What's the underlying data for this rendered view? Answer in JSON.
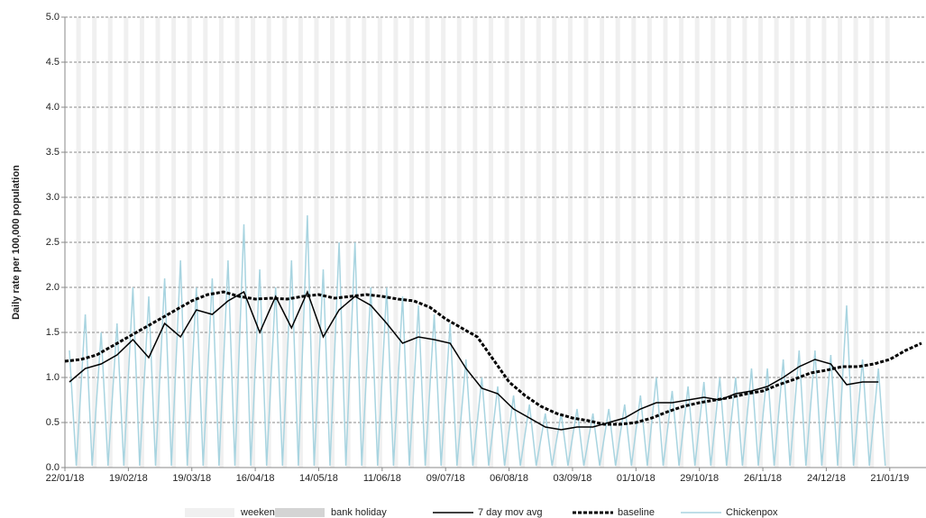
{
  "chart_data": {
    "type": "line",
    "y_label": "Daily rate per 100,000 population",
    "xlim": [
      "2018-01-22",
      "2019-02-06"
    ],
    "ylim": [
      0,
      5
    ],
    "yticks": [
      {
        "value": 0,
        "label": "0.0"
      },
      {
        "value": 0.5,
        "label": "0.5"
      },
      {
        "value": 1,
        "label": "1.0"
      },
      {
        "value": 1.5,
        "label": "1.5"
      },
      {
        "value": 2,
        "label": "2.0"
      },
      {
        "value": 2.5,
        "label": "2.5"
      },
      {
        "value": 3,
        "label": "3.0"
      },
      {
        "value": 3.5,
        "label": "3.5"
      },
      {
        "value": 4,
        "label": "4.0"
      },
      {
        "value": 4.5,
        "label": "4.5"
      },
      {
        "value": 5,
        "label": "5.0"
      }
    ],
    "xticks": [
      {
        "value": "2018-01-22",
        "label": "22/01/18"
      },
      {
        "value": "2018-02-19",
        "label": "19/02/18"
      },
      {
        "value": "2018-03-19",
        "label": "19/03/18"
      },
      {
        "value": "2018-04-16",
        "label": "16/04/18"
      },
      {
        "value": "2018-05-14",
        "label": "14/05/18"
      },
      {
        "value": "2018-06-11",
        "label": "11/06/18"
      },
      {
        "value": "2018-07-09",
        "label": "09/07/18"
      },
      {
        "value": "2018-08-06",
        "label": "06/08/18"
      },
      {
        "value": "2018-09-03",
        "label": "03/09/18"
      },
      {
        "value": "2018-10-01",
        "label": "01/10/18"
      },
      {
        "value": "2018-10-29",
        "label": "29/10/18"
      },
      {
        "value": "2018-11-26",
        "label": "26/11/18"
      },
      {
        "value": "2018-12-24",
        "label": "24/12/18"
      },
      {
        "value": "2019-01-21",
        "label": "21/01/19"
      }
    ],
    "grid": true,
    "legend": "bottom",
    "series": [
      {
        "name": "weekend",
        "style": "bar",
        "color": "#f0f0f0",
        "x": [
          "2018-01-27",
          "2018-02-03",
          "2018-02-10",
          "2018-02-17",
          "2018-02-24",
          "2018-03-03",
          "2018-03-10",
          "2018-03-17",
          "2018-03-24",
          "2018-03-31",
          "2018-04-07",
          "2018-04-14",
          "2018-04-21",
          "2018-04-28",
          "2018-05-05",
          "2018-05-12",
          "2018-05-19",
          "2018-05-26",
          "2018-06-02",
          "2018-06-09",
          "2018-06-16",
          "2018-06-23",
          "2018-06-30",
          "2018-07-07",
          "2018-07-14",
          "2018-07-21",
          "2018-07-28",
          "2018-08-04",
          "2018-08-11",
          "2018-08-18",
          "2018-08-25",
          "2018-09-01",
          "2018-09-08",
          "2018-09-15",
          "2018-09-22",
          "2018-09-29",
          "2018-10-06",
          "2018-10-13",
          "2018-10-20",
          "2018-10-27",
          "2018-11-03",
          "2018-11-10",
          "2018-11-17",
          "2018-11-24",
          "2018-12-01",
          "2018-12-08",
          "2018-12-15",
          "2018-12-22",
          "2018-12-29",
          "2019-01-05",
          "2019-01-12",
          "2019-01-19"
        ],
        "values": [
          5,
          5,
          5,
          5,
          5,
          5,
          5,
          5,
          5,
          5,
          5,
          5,
          5,
          5,
          5,
          5,
          5,
          5,
          5,
          5,
          5,
          5,
          5,
          5,
          5,
          5,
          5,
          5,
          5,
          5,
          5,
          5,
          5,
          5,
          5,
          5,
          5,
          5,
          5,
          5,
          5,
          5,
          5,
          5,
          5,
          5,
          5,
          5,
          5,
          5,
          5,
          5
        ]
      },
      {
        "name": "bank holiday",
        "style": "bar",
        "color": "#d4d4d4",
        "x": [],
        "values": []
      },
      {
        "name": "7 day mov avg",
        "style": "line",
        "color": "#000000",
        "x": [
          "2018-01-24",
          "2018-01-31",
          "2018-02-07",
          "2018-02-14",
          "2018-02-21",
          "2018-02-28",
          "2018-03-07",
          "2018-03-14",
          "2018-03-21",
          "2018-03-28",
          "2018-04-04",
          "2018-04-11",
          "2018-04-18",
          "2018-04-25",
          "2018-05-02",
          "2018-05-09",
          "2018-05-16",
          "2018-05-23",
          "2018-05-30",
          "2018-06-06",
          "2018-06-13",
          "2018-06-20",
          "2018-06-27",
          "2018-07-04",
          "2018-07-11",
          "2018-07-18",
          "2018-07-25",
          "2018-08-01",
          "2018-08-08",
          "2018-08-15",
          "2018-08-22",
          "2018-08-29",
          "2018-09-05",
          "2018-09-12",
          "2018-09-19",
          "2018-09-26",
          "2018-10-03",
          "2018-10-10",
          "2018-10-17",
          "2018-10-24",
          "2018-10-31",
          "2018-11-07",
          "2018-11-14",
          "2018-11-21",
          "2018-11-28",
          "2018-12-05",
          "2018-12-12",
          "2018-12-19",
          "2018-12-26",
          "2019-01-02",
          "2019-01-09",
          "2019-01-16"
        ],
        "values": [
          0.95,
          1.1,
          1.15,
          1.25,
          1.42,
          1.22,
          1.6,
          1.45,
          1.75,
          1.7,
          1.85,
          1.95,
          1.5,
          1.9,
          1.55,
          1.95,
          1.45,
          1.75,
          1.9,
          1.8,
          1.6,
          1.38,
          1.45,
          1.42,
          1.38,
          1.1,
          0.88,
          0.82,
          0.65,
          0.55,
          0.45,
          0.42,
          0.45,
          0.45,
          0.5,
          0.55,
          0.65,
          0.72,
          0.72,
          0.75,
          0.78,
          0.75,
          0.82,
          0.85,
          0.9,
          1.0,
          1.12,
          1.2,
          1.15,
          0.92,
          0.95,
          0.95
        ]
      },
      {
        "name": "baseline",
        "style": "dashed",
        "color": "#000000",
        "x": [
          "2018-01-22",
          "2018-01-29",
          "2018-02-05",
          "2018-02-12",
          "2018-02-19",
          "2018-02-26",
          "2018-03-05",
          "2018-03-12",
          "2018-03-19",
          "2018-03-26",
          "2018-04-02",
          "2018-04-09",
          "2018-04-16",
          "2018-04-23",
          "2018-04-30",
          "2018-05-07",
          "2018-05-14",
          "2018-05-21",
          "2018-05-28",
          "2018-06-04",
          "2018-06-11",
          "2018-06-18",
          "2018-06-25",
          "2018-07-02",
          "2018-07-09",
          "2018-07-16",
          "2018-07-23",
          "2018-07-30",
          "2018-08-06",
          "2018-08-13",
          "2018-08-20",
          "2018-08-27",
          "2018-09-03",
          "2018-09-10",
          "2018-09-17",
          "2018-09-24",
          "2018-10-01",
          "2018-10-08",
          "2018-10-15",
          "2018-10-22",
          "2018-10-29",
          "2018-11-05",
          "2018-11-12",
          "2018-11-19",
          "2018-11-26",
          "2018-12-03",
          "2018-12-10",
          "2018-12-17",
          "2018-12-24",
          "2018-12-31",
          "2019-01-07",
          "2019-01-14",
          "2019-01-21",
          "2019-01-28",
          "2019-02-04"
        ],
        "values": [
          1.18,
          1.2,
          1.25,
          1.35,
          1.45,
          1.55,
          1.65,
          1.75,
          1.85,
          1.92,
          1.95,
          1.9,
          1.87,
          1.88,
          1.87,
          1.9,
          1.92,
          1.88,
          1.9,
          1.92,
          1.9,
          1.87,
          1.85,
          1.78,
          1.65,
          1.55,
          1.45,
          1.2,
          0.95,
          0.8,
          0.68,
          0.6,
          0.55,
          0.52,
          0.48,
          0.48,
          0.5,
          0.55,
          0.62,
          0.68,
          0.72,
          0.75,
          0.78,
          0.82,
          0.85,
          0.92,
          0.98,
          1.05,
          1.08,
          1.12,
          1.12,
          1.15,
          1.2,
          1.3,
          1.38
        ]
      },
      {
        "name": "Chickenpox",
        "style": "line",
        "color": "#a8d4e0",
        "x": [
          "2018-01-24",
          "2018-01-27",
          "2018-01-31",
          "2018-02-03",
          "2018-02-07",
          "2018-02-10",
          "2018-02-14",
          "2018-02-17",
          "2018-02-21",
          "2018-02-24",
          "2018-02-28",
          "2018-03-03",
          "2018-03-07",
          "2018-03-10",
          "2018-03-14",
          "2018-03-17",
          "2018-03-21",
          "2018-03-24",
          "2018-03-28",
          "2018-03-31",
          "2018-04-04",
          "2018-04-07",
          "2018-04-11",
          "2018-04-14",
          "2018-04-18",
          "2018-04-21",
          "2018-04-25",
          "2018-04-28",
          "2018-05-02",
          "2018-05-05",
          "2018-05-09",
          "2018-05-12",
          "2018-05-16",
          "2018-05-19",
          "2018-05-23",
          "2018-05-26",
          "2018-05-30",
          "2018-06-02",
          "2018-06-06",
          "2018-06-09",
          "2018-06-13",
          "2018-06-16",
          "2018-06-20",
          "2018-06-23",
          "2018-06-27",
          "2018-06-30",
          "2018-07-04",
          "2018-07-07",
          "2018-07-11",
          "2018-07-14",
          "2018-07-18",
          "2018-07-21",
          "2018-07-25",
          "2018-07-28",
          "2018-08-01",
          "2018-08-04",
          "2018-08-08",
          "2018-08-11",
          "2018-08-15",
          "2018-08-18",
          "2018-08-22",
          "2018-08-25",
          "2018-08-29",
          "2018-09-01",
          "2018-09-05",
          "2018-09-08",
          "2018-09-12",
          "2018-09-15",
          "2018-09-19",
          "2018-09-22",
          "2018-09-26",
          "2018-09-29",
          "2018-10-03",
          "2018-10-06",
          "2018-10-10",
          "2018-10-13",
          "2018-10-17",
          "2018-10-20",
          "2018-10-24",
          "2018-10-27",
          "2018-10-31",
          "2018-11-03",
          "2018-11-07",
          "2018-11-10",
          "2018-11-14",
          "2018-11-17",
          "2018-11-21",
          "2018-11-24",
          "2018-11-28",
          "2018-12-01",
          "2018-12-05",
          "2018-12-08",
          "2018-12-12",
          "2018-12-15",
          "2018-12-19",
          "2018-12-22",
          "2018-12-26",
          "2018-12-29",
          "2019-01-02",
          "2019-01-05",
          "2019-01-09",
          "2019-01-12",
          "2019-01-16",
          "2019-01-19"
        ],
        "values": [
          1.3,
          0.02,
          1.7,
          0.02,
          1.5,
          0.02,
          1.6,
          0.02,
          2.0,
          0.02,
          1.9,
          0.02,
          2.1,
          0.02,
          2.3,
          0.02,
          2.0,
          0.02,
          2.1,
          0.02,
          2.3,
          0.02,
          2.7,
          0.02,
          2.2,
          0.02,
          2.0,
          0.02,
          2.3,
          0.02,
          2.8,
          0.02,
          2.2,
          0.02,
          2.5,
          0.02,
          2.5,
          0.02,
          2.0,
          0.02,
          2.0,
          0.02,
          1.9,
          0.02,
          1.8,
          0.02,
          1.7,
          0.02,
          1.6,
          0.02,
          1.2,
          0.02,
          1.0,
          0.02,
          0.9,
          0.02,
          0.8,
          0.02,
          0.7,
          0.02,
          0.6,
          0.02,
          0.6,
          0.02,
          0.65,
          0.02,
          0.6,
          0.02,
          0.65,
          0.02,
          0.7,
          0.02,
          0.8,
          0.02,
          1.0,
          0.02,
          0.85,
          0.02,
          0.9,
          0.02,
          0.95,
          0.02,
          1.0,
          0.02,
          1.0,
          0.02,
          1.1,
          0.02,
          1.1,
          0.02,
          1.2,
          0.02,
          1.3,
          0.02,
          1.3,
          0.02,
          1.25,
          0.02,
          1.8,
          0.02,
          1.2,
          0.02,
          1.1,
          0.02
        ]
      }
    ]
  }
}
